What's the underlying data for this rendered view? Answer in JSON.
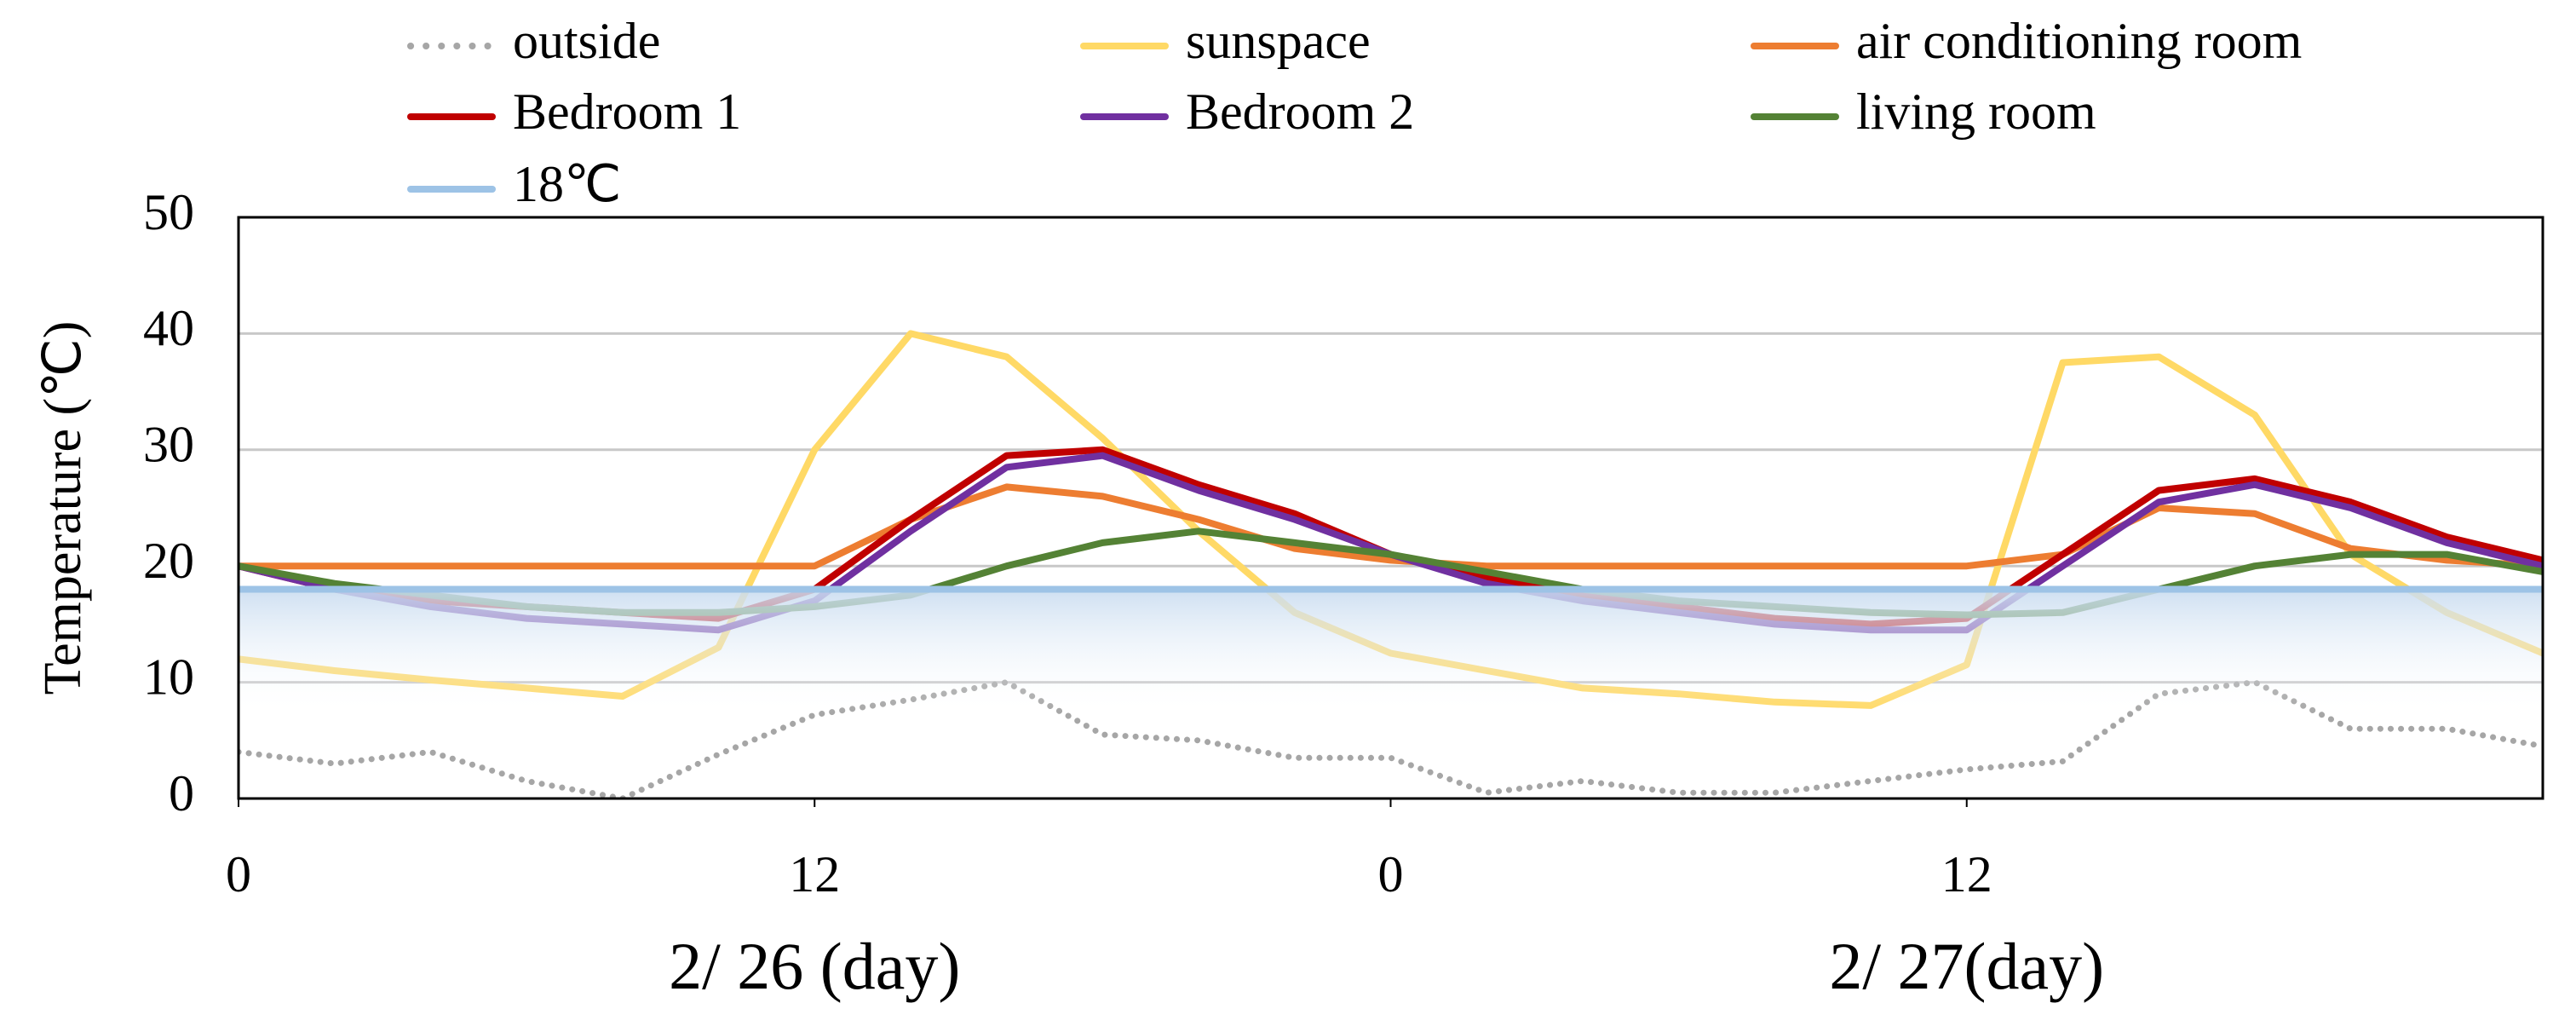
{
  "chart_data": {
    "type": "line",
    "y_label": "Temperature (℃)",
    "day_labels": [
      "2/ 26 (day)",
      "2/ 27(day)"
    ],
    "x": [
      0,
      2,
      4,
      6,
      8,
      10,
      12,
      14,
      16,
      18,
      20,
      22,
      24,
      26,
      28,
      30,
      32,
      34,
      36,
      38,
      40,
      42,
      44,
      46,
      48
    ],
    "xlim": [
      0,
      48
    ],
    "xticks": [
      0,
      12,
      {
        "value": 24,
        "label": "0"
      },
      {
        "value": 36,
        "label": "12"
      }
    ],
    "ylim": [
      0,
      50
    ],
    "yticks": [
      0,
      10,
      20,
      30,
      40,
      50
    ],
    "grid": true,
    "legend": "top",
    "series": [
      {
        "name": "outside",
        "color": "#a6a6a6",
        "dash": true,
        "values": [
          4,
          3,
          4,
          1.5,
          0,
          3.8,
          7.2,
          8.5,
          10,
          5.5,
          5,
          3.5,
          3.5,
          0.5,
          1.5,
          0.5,
          0.5,
          1.5,
          2.5,
          3.2,
          9,
          10,
          6,
          6,
          4.5
        ]
      },
      {
        "name": "sunspace",
        "color": "#ffd966",
        "values": [
          12,
          11,
          10.2,
          9.5,
          8.8,
          13,
          30,
          40,
          38,
          31,
          23,
          16,
          12.5,
          11,
          9.5,
          9,
          8.3,
          8,
          11.5,
          37.5,
          38,
          33,
          21,
          16,
          12.5
        ]
      },
      {
        "name": "air conditioning room",
        "color": "#ed7d31",
        "values": [
          20,
          20,
          20,
          20,
          20,
          20,
          20,
          24,
          26.8,
          26,
          24,
          21.5,
          20.5,
          20,
          20,
          20,
          20,
          20,
          20,
          21,
          25,
          24.5,
          21.5,
          20.5,
          20
        ]
      },
      {
        "name": "Bedroom 1",
        "color": "#c00000",
        "values": [
          20,
          18,
          17,
          16.5,
          16,
          15.5,
          18,
          24,
          29.5,
          30,
          27,
          24.5,
          21,
          19,
          17.5,
          16.5,
          15.5,
          15,
          15.5,
          21,
          26.5,
          27.5,
          25.5,
          22.5,
          20.5
        ]
      },
      {
        "name": "Bedroom 2",
        "color": "#7030a0",
        "values": [
          20,
          18,
          16.5,
          15.5,
          15,
          14.5,
          17,
          23,
          28.5,
          29.5,
          26.5,
          24,
          21,
          18.5,
          17,
          16,
          15,
          14.5,
          14.5,
          20,
          25.5,
          27,
          25,
          22,
          20
        ]
      },
      {
        "name": "living room",
        "color": "#548235",
        "values": [
          20,
          18.5,
          17.5,
          16.5,
          16,
          16,
          16.5,
          17.5,
          20,
          22,
          23,
          22,
          21,
          19.5,
          18,
          17,
          16.5,
          16,
          15.8,
          16,
          18,
          20,
          21,
          21,
          19.5
        ]
      },
      {
        "name": "18℃",
        "color": "#9dc3e6",
        "shade": true,
        "values": [
          18,
          18,
          18,
          18,
          18,
          18,
          18,
          18,
          18,
          18,
          18,
          18,
          18,
          18,
          18,
          18,
          18,
          18,
          18,
          18,
          18,
          18,
          18,
          18,
          18
        ]
      }
    ]
  }
}
